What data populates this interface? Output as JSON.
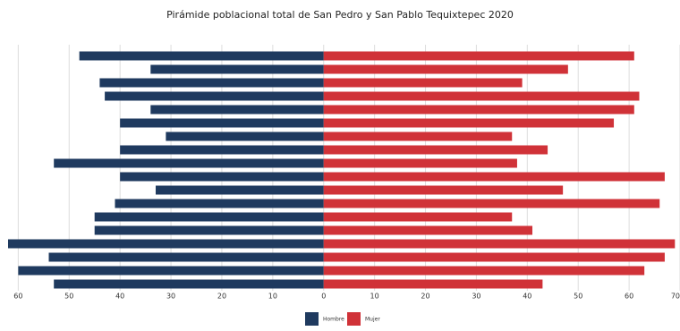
{
  "chart_data": {
    "type": "pyramid",
    "title": "Pirámide poblacional total de San Pedro y San Pablo Tequixtepec 2020",
    "categories": [
      null,
      null,
      null,
      null,
      null,
      null,
      null,
      null,
      null,
      null,
      null,
      null,
      null,
      null,
      null,
      null,
      null,
      null
    ],
    "series": [
      {
        "name": "Hombre",
        "color": "#1f3a5f",
        "values": [
          48,
          34,
          44,
          43,
          34,
          40,
          31,
          40,
          53,
          40,
          33,
          41,
          45,
          45,
          62,
          54,
          60,
          53
        ]
      },
      {
        "name": "Mujer",
        "color": "#d03238",
        "values": [
          61,
          48,
          39,
          62,
          61,
          57,
          37,
          44,
          38,
          67,
          47,
          66,
          37,
          41,
          69,
          67,
          63,
          43
        ]
      }
    ],
    "xlim": [
      -62,
      70
    ],
    "xticks": [
      {
        "value": -60,
        "label": "60"
      },
      {
        "value": -50,
        "label": "50"
      },
      {
        "value": -40,
        "label": "40"
      },
      {
        "value": -30,
        "label": "30"
      },
      {
        "value": -20,
        "label": "20"
      },
      {
        "value": -10,
        "label": "10"
      },
      0,
      10,
      20,
      30,
      40,
      50,
      60,
      70
    ],
    "grid": true,
    "legend": "bottom"
  }
}
